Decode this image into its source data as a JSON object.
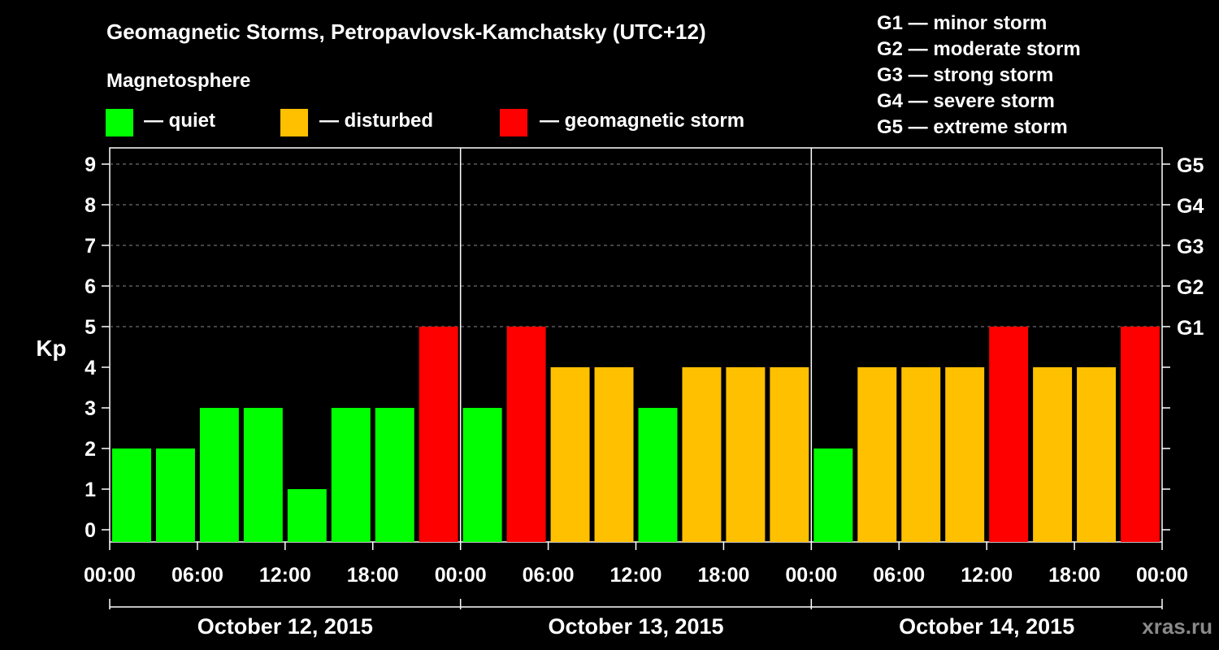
{
  "title": "Geomagnetic Storms, Petropavlovsk-Kamchatsky (UTC+12)",
  "legend": {
    "heading": "Magnetosphere",
    "items": [
      {
        "label": "— quiet",
        "color": "#00ff00"
      },
      {
        "label": "— disturbed",
        "color": "#ffc000"
      },
      {
        "label": "— geomagnetic storm",
        "color": "#ff0000"
      }
    ]
  },
  "storm_scale": [
    "G1 — minor storm",
    "G2 — moderate storm",
    "G3 — strong storm",
    "G4 — severe storm",
    "G5 — extreme storm"
  ],
  "watermark": "xras.ru",
  "chart_data": {
    "type": "bar",
    "title": "Geomagnetic Storms, Petropavlovsk-Kamchatsky (UTC+12)",
    "ylabel": "Kp",
    "ylim": [
      0,
      9
    ],
    "yticks": [
      "0",
      "1",
      "2",
      "3",
      "4",
      "5",
      "6",
      "7",
      "8",
      "9"
    ],
    "right_ticks": [
      {
        "kp": 5,
        "label": "G1"
      },
      {
        "kp": 6,
        "label": "G2"
      },
      {
        "kp": 7,
        "label": "G3"
      },
      {
        "kp": 8,
        "label": "G4"
      },
      {
        "kp": 9,
        "label": "G5"
      }
    ],
    "xticks": [
      "00:00",
      "06:00",
      "12:00",
      "18:00",
      "00:00",
      "06:00",
      "12:00",
      "18:00",
      "00:00",
      "06:00",
      "12:00",
      "18:00",
      "00:00"
    ],
    "days": [
      "October 12, 2015",
      "October 13, 2015",
      "October 14, 2015"
    ],
    "interval_hours": 3,
    "values": [
      2,
      2,
      3,
      3,
      1,
      3,
      3,
      5,
      3,
      5,
      4,
      4,
      3,
      4,
      4,
      4,
      2,
      4,
      4,
      4,
      5,
      4,
      4,
      5
    ],
    "colors": {
      "quiet": "#00ff00",
      "disturbed": "#ffc000",
      "storm": "#ff0000"
    },
    "grid": true
  }
}
